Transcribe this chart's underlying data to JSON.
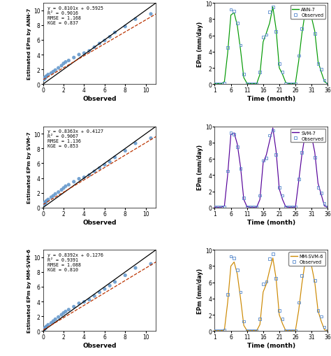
{
  "panels": [
    {
      "model": "ANN-7",
      "color": "#009900",
      "scatter_eq": "y = 0.8101x + 0.5925",
      "r2": "R² = 0.9016",
      "rmse": "RMSE = 1.168",
      "kge": "KGE = 0.837",
      "ylabel_scatter": "Estimated EPm by ANN-7"
    },
    {
      "model": "SVM-7",
      "color": "#550099",
      "scatter_eq": "y = 0.8363x + 0.4127",
      "r2": "R² = 0.9067",
      "rmse": "RMSE = 1.136",
      "kge": "KGE = 0.853",
      "ylabel_scatter": "Estimated EPm by SVM-7"
    },
    {
      "model": "MM-SVM-6",
      "color": "#cc8800",
      "scatter_eq": "y = 0.8392x + 0.1276",
      "r2": "R² = 0.9391",
      "rmse": "RMSE = 1.088",
      "kge": "KGE = 0.810",
      "ylabel_scatter": "Estimated EPm by MM-SVM-6"
    }
  ],
  "obs_ts": [
    0.05,
    0.05,
    0.05,
    0.1,
    4.5,
    9.2,
    9.0,
    7.5,
    4.8,
    1.2,
    0.05,
    0.05,
    0.05,
    0.05,
    1.5,
    5.8,
    6.1,
    8.9,
    9.5,
    6.5,
    2.5,
    1.5,
    0.05,
    0.05,
    0.05,
    0.05,
    3.5,
    6.8,
    9.2,
    9.0,
    8.5,
    6.2,
    2.5,
    1.8,
    0.5,
    0.05
  ],
  "ann7_ts": [
    0.05,
    0.05,
    0.05,
    0.3,
    3.8,
    8.5,
    8.8,
    7.2,
    4.2,
    0.8,
    0.1,
    0.05,
    0.05,
    0.05,
    1.2,
    5.2,
    6.3,
    7.5,
    9.5,
    6.8,
    2.0,
    1.2,
    0.2,
    0.05,
    0.05,
    0.1,
    2.8,
    6.2,
    8.8,
    9.2,
    8.2,
    6.5,
    2.8,
    1.5,
    0.3,
    0.05
  ],
  "svm7_ts": [
    0.05,
    0.05,
    0.05,
    0.2,
    4.0,
    9.0,
    9.2,
    7.8,
    5.0,
    1.0,
    0.1,
    0.05,
    0.05,
    0.05,
    1.0,
    5.5,
    6.5,
    8.2,
    9.8,
    7.0,
    2.3,
    1.0,
    0.1,
    0.05,
    0.05,
    0.05,
    3.2,
    6.5,
    9.0,
    9.3,
    8.8,
    6.8,
    3.0,
    1.6,
    0.2,
    0.05
  ],
  "mmsvm6_ts": [
    0.05,
    0.05,
    0.05,
    0.15,
    3.5,
    8.0,
    8.5,
    7.0,
    4.0,
    0.7,
    0.05,
    0.05,
    0.05,
    0.05,
    0.8,
    4.8,
    5.8,
    7.5,
    9.0,
    6.5,
    2.0,
    0.9,
    0.05,
    0.05,
    0.05,
    0.05,
    2.5,
    5.8,
    8.5,
    8.8,
    8.0,
    6.0,
    2.5,
    1.2,
    0.15,
    0.05
  ],
  "scatter_obs_ann": [
    0.05,
    0.08,
    0.1,
    0.1,
    0.12,
    0.15,
    0.15,
    0.15,
    0.18,
    0.2,
    0.2,
    0.2,
    0.25,
    0.3,
    0.35,
    0.5,
    0.8,
    1.0,
    1.2,
    1.5,
    1.8,
    2.0,
    2.2,
    2.5,
    3.0,
    3.5,
    4.0,
    4.5,
    5.0,
    5.5,
    6.0,
    6.5,
    7.0,
    8.0,
    9.0,
    10.5
  ],
  "scatter_est_ann": [
    0.62,
    0.65,
    0.68,
    0.7,
    0.72,
    0.75,
    0.76,
    0.8,
    0.82,
    0.85,
    0.88,
    0.9,
    0.95,
    1.0,
    1.1,
    1.3,
    1.5,
    1.7,
    1.9,
    2.2,
    2.5,
    2.8,
    3.0,
    3.2,
    3.6,
    4.0,
    4.2,
    4.5,
    5.0,
    5.5,
    5.9,
    6.4,
    7.0,
    7.8,
    8.8,
    9.5
  ],
  "scatter_obs_svm": [
    0.05,
    0.08,
    0.1,
    0.1,
    0.12,
    0.15,
    0.15,
    0.15,
    0.18,
    0.2,
    0.2,
    0.2,
    0.25,
    0.3,
    0.35,
    0.5,
    0.8,
    1.0,
    1.2,
    1.5,
    1.8,
    2.0,
    2.2,
    2.5,
    3.0,
    3.5,
    4.0,
    4.5,
    5.0,
    5.5,
    6.0,
    6.5,
    7.0,
    8.0,
    9.0,
    10.5
  ],
  "scatter_est_svm": [
    0.45,
    0.48,
    0.5,
    0.52,
    0.54,
    0.56,
    0.57,
    0.6,
    0.62,
    0.65,
    0.68,
    0.7,
    0.75,
    0.82,
    0.92,
    1.1,
    1.4,
    1.6,
    1.85,
    2.1,
    2.4,
    2.65,
    2.9,
    3.1,
    3.5,
    3.9,
    4.1,
    4.4,
    4.9,
    5.35,
    5.8,
    6.2,
    6.8,
    7.7,
    8.7,
    9.4
  ],
  "scatter_obs_mm": [
    0.05,
    0.08,
    0.1,
    0.1,
    0.12,
    0.15,
    0.15,
    0.15,
    0.18,
    0.2,
    0.2,
    0.2,
    0.25,
    0.3,
    0.35,
    0.5,
    0.8,
    1.0,
    1.2,
    1.5,
    1.8,
    2.0,
    2.2,
    2.5,
    3.0,
    3.5,
    4.0,
    4.5,
    5.0,
    5.5,
    6.0,
    6.5,
    7.0,
    8.0,
    9.0,
    10.5
  ],
  "scatter_est_mm": [
    0.18,
    0.21,
    0.23,
    0.25,
    0.27,
    0.3,
    0.31,
    0.34,
    0.36,
    0.38,
    0.41,
    0.43,
    0.48,
    0.55,
    0.65,
    0.85,
    1.1,
    1.35,
    1.6,
    1.9,
    2.2,
    2.45,
    2.65,
    2.9,
    3.3,
    3.75,
    3.95,
    4.25,
    4.75,
    5.25,
    5.7,
    6.15,
    6.65,
    7.55,
    8.55,
    9.1
  ],
  "time_months": [
    1,
    2,
    3,
    4,
    5,
    6,
    7,
    8,
    9,
    10,
    11,
    12,
    13,
    14,
    15,
    16,
    17,
    18,
    19,
    20,
    21,
    22,
    23,
    24,
    25,
    26,
    27,
    28,
    29,
    30,
    31,
    32,
    33,
    34,
    35,
    36
  ],
  "xlim_scatter": [
    0,
    11
  ],
  "ylim_scatter": [
    0,
    11
  ],
  "xlim_ts": [
    1,
    36
  ],
  "ylim_ts": [
    0,
    10
  ],
  "xlabel_scatter": "Observed",
  "ylabel_ts": "EPm (mm/day)",
  "xlabel_ts": "Time (month)",
  "xticks_ts": [
    1,
    6,
    11,
    16,
    21,
    26,
    31,
    36
  ],
  "yticks_scatter": [
    0,
    2,
    4,
    6,
    8,
    10
  ],
  "xticks_scatter": [
    0,
    2,
    4,
    6,
    8,
    10
  ],
  "yticks_ts": [
    0,
    2,
    4,
    6,
    8,
    10
  ],
  "scatter_dot_color": "#6699cc",
  "obs_marker_color": "#5588cc"
}
